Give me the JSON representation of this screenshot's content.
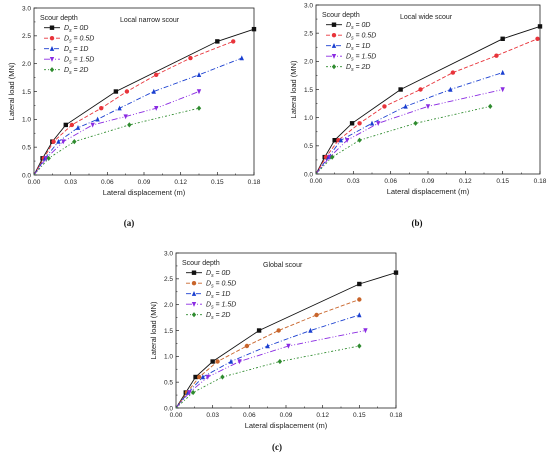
{
  "chart_data": [
    {
      "type": "line",
      "caption": "(a)",
      "title": "Local narrow scour",
      "legend_title": "Scour depth",
      "xlabel": "Lateral displacement (m)",
      "ylabel": "Lateral load (MN)",
      "xlim": [
        0,
        0.18
      ],
      "ylim": [
        0,
        3.0
      ],
      "xticks": [
        "0.00",
        "0.03",
        "0.06",
        "0.09",
        "0.12",
        "0.15",
        "0.18"
      ],
      "yticks": [
        "0.0",
        "0.5",
        "1.0",
        "1.5",
        "2.0",
        "2.5",
        "3.0"
      ],
      "grid": false,
      "legend_position": "top-left",
      "series": [
        {
          "name": "Ds = 0D",
          "color": "#111111",
          "dash": "",
          "marker": "square",
          "x": [
            0,
            0.007,
            0.015,
            0.026,
            0.067,
            0.15,
            0.18
          ],
          "y": [
            0,
            0.3,
            0.6,
            0.9,
            1.5,
            2.4,
            2.62
          ]
        },
        {
          "name": "Ds = 0.5D",
          "color": "#e8333a",
          "dash": "4,2",
          "marker": "circle",
          "x": [
            0,
            0.008,
            0.016,
            0.031,
            0.055,
            0.076,
            0.1,
            0.128,
            0.163
          ],
          "y": [
            0,
            0.3,
            0.6,
            0.9,
            1.2,
            1.5,
            1.8,
            2.1,
            2.4
          ]
        },
        {
          "name": "Ds = 1D",
          "color": "#1a3fd0",
          "dash": "5,2,1,2",
          "marker": "triangle",
          "x": [
            0,
            0.009,
            0.02,
            0.036,
            0.052,
            0.07,
            0.098,
            0.135,
            0.17
          ],
          "y": [
            0,
            0.3,
            0.6,
            0.85,
            1.0,
            1.2,
            1.5,
            1.8,
            2.1
          ]
        },
        {
          "name": "Ds = 1.5D",
          "color": "#8a2be2",
          "dash": "6,2,1,2,1,2",
          "marker": "triangle-down",
          "x": [
            0,
            0.01,
            0.024,
            0.048,
            0.075,
            0.1,
            0.135
          ],
          "y": [
            0,
            0.3,
            0.6,
            0.9,
            1.05,
            1.2,
            1.5
          ]
        },
        {
          "name": "Ds = 2D",
          "color": "#2e8b2e",
          "dash": "2,2,1,2",
          "marker": "diamond",
          "x": [
            0,
            0.012,
            0.033,
            0.078,
            0.135
          ],
          "y": [
            0,
            0.3,
            0.6,
            0.9,
            1.2
          ]
        }
      ]
    },
    {
      "type": "line",
      "caption": "(b)",
      "title": "Local wide scour",
      "legend_title": "Scour depth",
      "xlabel": "Lateral displacement (m)",
      "ylabel": "Lateral load (MN)",
      "xlim": [
        0,
        0.18
      ],
      "ylim": [
        0,
        3.0
      ],
      "xticks": [
        "0.00",
        "0.03",
        "0.06",
        "0.09",
        "0.12",
        "0.15",
        "0.18"
      ],
      "yticks": [
        "0.0",
        "0.5",
        "1.0",
        "1.5",
        "2.0",
        "2.5",
        "3.0"
      ],
      "grid": false,
      "legend_position": "top-left",
      "series": [
        {
          "name": "Ds = 0D",
          "color": "#111111",
          "dash": "",
          "marker": "square",
          "x": [
            0,
            0.007,
            0.015,
            0.029,
            0.068,
            0.15,
            0.18
          ],
          "y": [
            0,
            0.3,
            0.6,
            0.9,
            1.5,
            2.4,
            2.62
          ]
        },
        {
          "name": "Ds = 0.5D",
          "color": "#e8333a",
          "dash": "4,2",
          "marker": "circle",
          "x": [
            0,
            0.008,
            0.018,
            0.035,
            0.055,
            0.084,
            0.11,
            0.145,
            0.178
          ],
          "y": [
            0,
            0.3,
            0.6,
            0.9,
            1.2,
            1.5,
            1.8,
            2.1,
            2.4
          ]
        },
        {
          "name": "Ds = 1D",
          "color": "#1a3fd0",
          "dash": "5,2,1,2",
          "marker": "triangle",
          "x": [
            0,
            0.01,
            0.02,
            0.045,
            0.072,
            0.108,
            0.15
          ],
          "y": [
            0,
            0.3,
            0.6,
            0.9,
            1.2,
            1.5,
            1.8
          ]
        },
        {
          "name": "Ds = 1.5D",
          "color": "#8a2be2",
          "dash": "6,2,1,2,1,2",
          "marker": "triangle-down",
          "x": [
            0,
            0.011,
            0.025,
            0.05,
            0.09,
            0.15
          ],
          "y": [
            0,
            0.3,
            0.6,
            0.9,
            1.2,
            1.5
          ]
        },
        {
          "name": "Ds = 2D",
          "color": "#2e8b2e",
          "dash": "2,2,1,2",
          "marker": "diamond",
          "x": [
            0,
            0.013,
            0.035,
            0.08,
            0.14
          ],
          "y": [
            0,
            0.3,
            0.6,
            0.9,
            1.2
          ]
        }
      ]
    },
    {
      "type": "line",
      "caption": "(c)",
      "title": "Global scour",
      "legend_title": "Scour depth",
      "xlabel": "Lateral displacement (m)",
      "ylabel": "Lateral load (MN)",
      "xlim": [
        0,
        0.18
      ],
      "ylim": [
        0,
        3.0
      ],
      "xticks": [
        "0.00",
        "0.03",
        "0.06",
        "0.09",
        "0.12",
        "0.15",
        "0.18"
      ],
      "yticks": [
        "0.0",
        "0.5",
        "1.0",
        "1.5",
        "2.0",
        "2.5",
        "3.0"
      ],
      "grid": false,
      "legend_position": "top-left",
      "series": [
        {
          "name": "Ds = 0D",
          "color": "#111111",
          "dash": "",
          "marker": "square",
          "x": [
            0,
            0.008,
            0.016,
            0.03,
            0.068,
            0.15,
            0.18
          ],
          "y": [
            0,
            0.3,
            0.6,
            0.9,
            1.5,
            2.4,
            2.62
          ]
        },
        {
          "name": "Ds = 0.5D",
          "color": "#c8642a",
          "dash": "4,2",
          "marker": "circle",
          "x": [
            0,
            0.009,
            0.019,
            0.034,
            0.058,
            0.084,
            0.115,
            0.15
          ],
          "y": [
            0,
            0.3,
            0.6,
            0.9,
            1.2,
            1.5,
            1.8,
            2.1
          ]
        },
        {
          "name": "Ds = 1D",
          "color": "#1a3fd0",
          "dash": "5,2,1,2",
          "marker": "triangle",
          "x": [
            0,
            0.01,
            0.022,
            0.045,
            0.075,
            0.11,
            0.15
          ],
          "y": [
            0,
            0.3,
            0.6,
            0.9,
            1.2,
            1.5,
            1.8
          ]
        },
        {
          "name": "Ds = 1.5D",
          "color": "#8a2be2",
          "dash": "6,2,1,2,1,2",
          "marker": "triangle-down",
          "x": [
            0,
            0.011,
            0.026,
            0.052,
            0.092,
            0.155
          ],
          "y": [
            0,
            0.3,
            0.6,
            0.9,
            1.2,
            1.5
          ]
        },
        {
          "name": "Ds = 2D",
          "color": "#2e8b2e",
          "dash": "2,2,1,2",
          "marker": "diamond",
          "x": [
            0,
            0.014,
            0.038,
            0.085,
            0.15
          ],
          "y": [
            0,
            0.3,
            0.6,
            0.9,
            1.2
          ]
        }
      ]
    }
  ]
}
